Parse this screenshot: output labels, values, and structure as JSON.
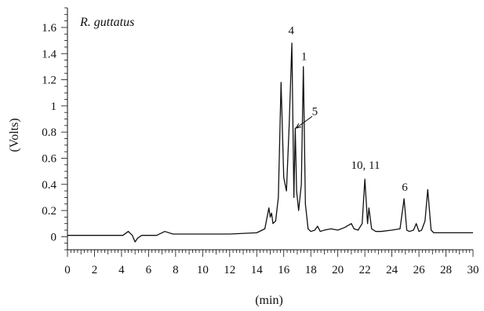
{
  "chart_data": {
    "type": "line",
    "title": "",
    "annotation_title": "R. guttatus",
    "xlabel": "(min)",
    "ylabel": "(Volts)",
    "xlim": [
      0,
      30
    ],
    "ylim": [
      -0.1,
      1.75
    ],
    "x_ticks": [
      0,
      2,
      4,
      6,
      8,
      10,
      12,
      14,
      16,
      18,
      20,
      22,
      24,
      26,
      28,
      30
    ],
    "y_ticks": [
      0,
      0.2,
      0.4,
      0.6,
      0.8,
      1,
      1.2,
      1.4,
      1.6
    ],
    "x_tick_labels": [
      "0",
      "2",
      "4",
      "6",
      "8",
      "10",
      "12",
      "14",
      "16",
      "18",
      "20",
      "22",
      "24",
      "26",
      "28",
      "30"
    ],
    "y_tick_labels": [
      "0",
      "0.2",
      "0.4",
      "0.6",
      "0.8",
      "1",
      "1.2",
      "1.4",
      "1.6"
    ],
    "grid": false,
    "baseline": 0.01,
    "series": [
      {
        "x": [
          0,
          4.1,
          4.5,
          4.8,
          5.0,
          5.2,
          5.5,
          6.6,
          7.2,
          7.8,
          8.5,
          9.5,
          10.0,
          12.0,
          14.0,
          14.6,
          14.9,
          15.0,
          15.1,
          15.2,
          15.4,
          15.6,
          15.8,
          16.0,
          16.2,
          16.4,
          16.6,
          16.75,
          16.85,
          16.95,
          17.1,
          17.3,
          17.45,
          17.6,
          17.8,
          18.0,
          18.3,
          18.5,
          18.7,
          19.0,
          19.5,
          20.0,
          20.5,
          21.0,
          21.2,
          21.5,
          21.8,
          22.0,
          22.2,
          22.3,
          22.5,
          22.8,
          23.2,
          24.0,
          24.6,
          24.9,
          25.1,
          25.3,
          25.6,
          25.8,
          26.0,
          26.2,
          26.45,
          26.65,
          26.9,
          27.1,
          27.5,
          30.0
        ],
        "y": [
          0.01,
          0.01,
          0.04,
          0.01,
          -0.04,
          -0.01,
          0.01,
          0.01,
          0.04,
          0.02,
          0.02,
          0.02,
          0.02,
          0.02,
          0.03,
          0.06,
          0.22,
          0.15,
          0.18,
          0.1,
          0.12,
          0.3,
          1.18,
          0.45,
          0.35,
          0.85,
          1.48,
          0.3,
          0.83,
          0.35,
          0.2,
          0.4,
          1.3,
          0.25,
          0.06,
          0.04,
          0.05,
          0.08,
          0.04,
          0.05,
          0.06,
          0.05,
          0.07,
          0.1,
          0.06,
          0.05,
          0.1,
          0.44,
          0.1,
          0.22,
          0.06,
          0.04,
          0.04,
          0.05,
          0.06,
          0.29,
          0.05,
          0.04,
          0.05,
          0.1,
          0.04,
          0.05,
          0.12,
          0.36,
          0.05,
          0.03,
          0.03,
          0.03
        ]
      }
    ],
    "annotations": [
      {
        "text": "4",
        "x": 16.55,
        "y": 1.55
      },
      {
        "text": "1",
        "x": 17.5,
        "y": 1.35
      },
      {
        "text": "5",
        "x": 18.3,
        "y": 0.93
      },
      {
        "text": "10, 11",
        "x": 22.05,
        "y": 0.52
      },
      {
        "text": "6",
        "x": 24.95,
        "y": 0.35
      }
    ],
    "arrow": {
      "from": [
        18.1,
        0.92
      ],
      "to": [
        16.9,
        0.83
      ]
    }
  }
}
